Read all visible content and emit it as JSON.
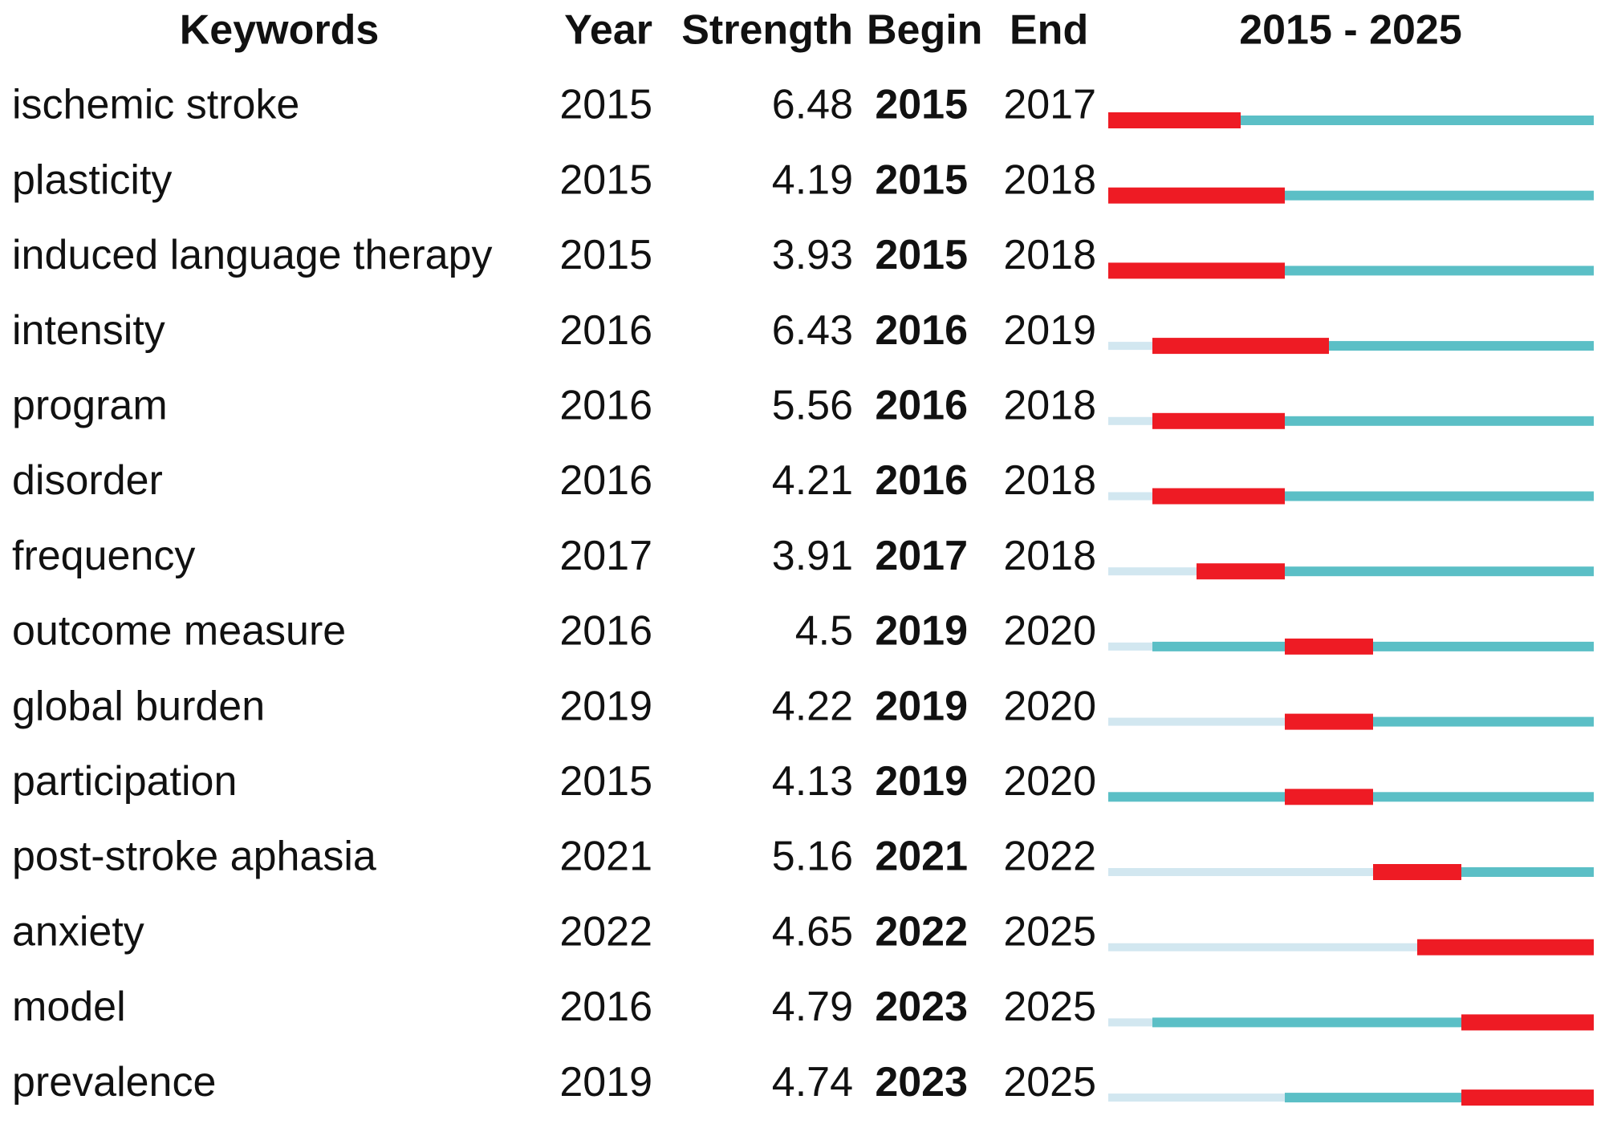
{
  "header": {
    "keywords": "Keywords",
    "year": "Year",
    "strength": "Strength",
    "begin": "Begin",
    "end": "End",
    "timeline": "2015 - 2025"
  },
  "rows": [
    {
      "keyword": "ischemic stroke",
      "year": 2015,
      "strength": 6.48,
      "begin": 2015,
      "end": 2017
    },
    {
      "keyword": "plasticity",
      "year": 2015,
      "strength": 4.19,
      "begin": 2015,
      "end": 2018
    },
    {
      "keyword": "induced language therapy",
      "year": 2015,
      "strength": 3.93,
      "begin": 2015,
      "end": 2018
    },
    {
      "keyword": "intensity",
      "year": 2016,
      "strength": 6.43,
      "begin": 2016,
      "end": 2019
    },
    {
      "keyword": "program",
      "year": 2016,
      "strength": 5.56,
      "begin": 2016,
      "end": 2018
    },
    {
      "keyword": "disorder",
      "year": 2016,
      "strength": 4.21,
      "begin": 2016,
      "end": 2018
    },
    {
      "keyword": "frequency",
      "year": 2017,
      "strength": 3.91,
      "begin": 2017,
      "end": 2018
    },
    {
      "keyword": "outcome measure",
      "year": 2016,
      "strength": 4.5,
      "begin": 2019,
      "end": 2020
    },
    {
      "keyword": "global burden",
      "year": 2019,
      "strength": 4.22,
      "begin": 2019,
      "end": 2020
    },
    {
      "keyword": "participation",
      "year": 2015,
      "strength": 4.13,
      "begin": 2019,
      "end": 2020
    },
    {
      "keyword": "post-stroke aphasia",
      "year": 2021,
      "strength": 5.16,
      "begin": 2021,
      "end": 2022
    },
    {
      "keyword": "anxiety",
      "year": 2022,
      "strength": 4.65,
      "begin": 2022,
      "end": 2025
    },
    {
      "keyword": "model",
      "year": 2016,
      "strength": 4.79,
      "begin": 2023,
      "end": 2025
    },
    {
      "keyword": "prevalence",
      "year": 2019,
      "strength": 4.74,
      "begin": 2023,
      "end": 2025
    }
  ]
}
